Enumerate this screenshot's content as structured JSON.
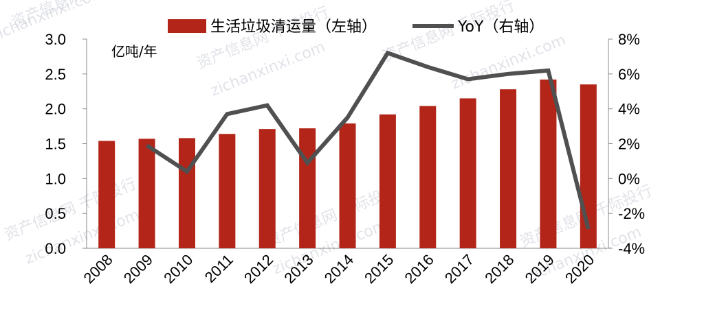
{
  "chart_data": {
    "type": "bar",
    "categories": [
      "2008",
      "2009",
      "2010",
      "2011",
      "2012",
      "2013",
      "2014",
      "2015",
      "2016",
      "2017",
      "2018",
      "2019",
      "2020"
    ],
    "series": [
      {
        "name": "生活垃圾清运量（左轴）",
        "type": "bar",
        "axis": "left",
        "values": [
          1.54,
          1.57,
          1.58,
          1.64,
          1.71,
          1.72,
          1.79,
          1.92,
          2.04,
          2.15,
          2.28,
          2.42,
          2.35
        ]
      },
      {
        "name": "YoY（右轴）",
        "type": "line",
        "axis": "right",
        "values": [
          null,
          1.9,
          0.4,
          3.7,
          4.2,
          0.9,
          3.5,
          7.2,
          6.4,
          5.7,
          6.0,
          6.2,
          -2.9
        ]
      }
    ],
    "left_axis": {
      "unit_label": "亿吨/年",
      "ylim": [
        0,
        3.0
      ],
      "ticks": [
        "0.0",
        "0.5",
        "1.0",
        "1.5",
        "2.0",
        "2.5",
        "3.0"
      ]
    },
    "right_axis": {
      "ylim": [
        -4,
        8
      ],
      "ticks": [
        "-4%",
        "-2%",
        "0%",
        "2%",
        "4%",
        "6%",
        "8%"
      ]
    },
    "grid": false,
    "legend_position": "top",
    "colors": {
      "bar": "#b22518",
      "line": "#505050"
    }
  },
  "watermarks": [
    "资产信息网  千际投行",
    "zichanxinxi.com"
  ]
}
